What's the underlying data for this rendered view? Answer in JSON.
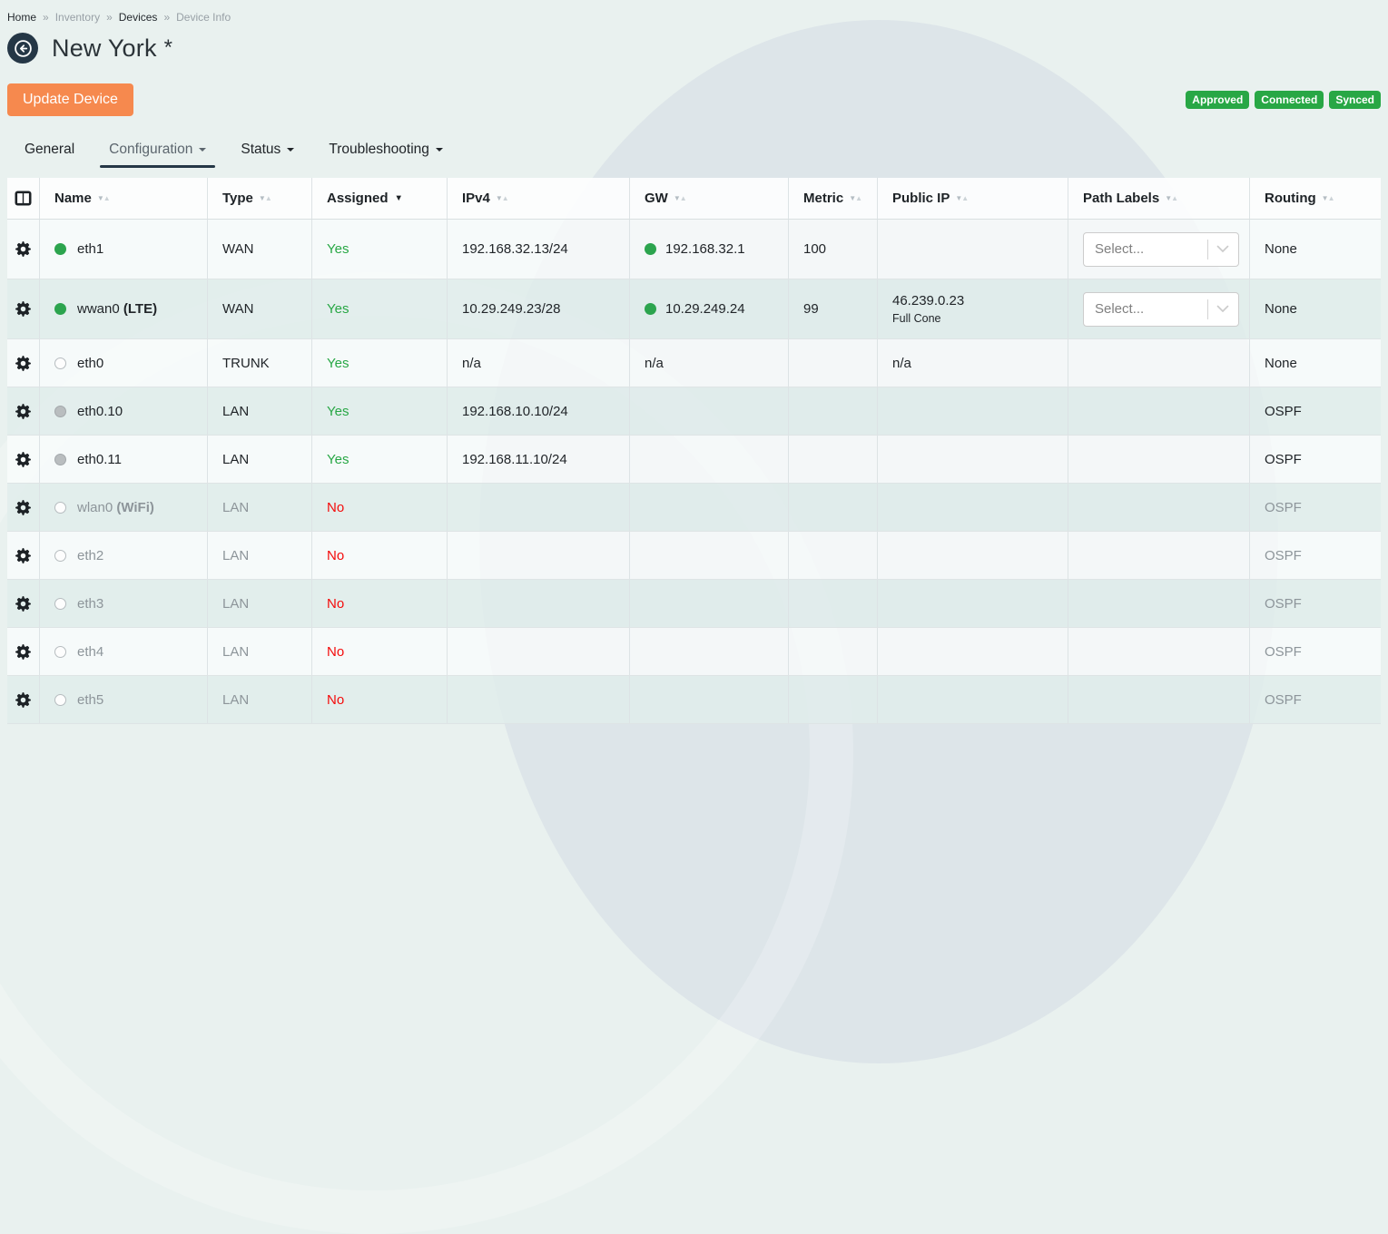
{
  "breadcrumb": {
    "separator": "»",
    "items": [
      {
        "label": "Home",
        "emphasis": true
      },
      {
        "label": "Inventory",
        "emphasis": false
      },
      {
        "label": "Devices",
        "emphasis": true
      },
      {
        "label": "Device Info",
        "emphasis": false
      }
    ]
  },
  "header": {
    "title": "New York",
    "unsaved_marker": "*",
    "back_icon": "arrow-left-circle-icon"
  },
  "actions": {
    "update_button": "Update Device"
  },
  "status_badges": [
    {
      "label": "Approved"
    },
    {
      "label": "Connected"
    },
    {
      "label": "Synced"
    }
  ],
  "tabs": {
    "items": [
      {
        "label": "General",
        "caret": false,
        "active": false
      },
      {
        "label": "Configuration",
        "caret": true,
        "active": true
      },
      {
        "label": "Status",
        "caret": true,
        "active": false
      },
      {
        "label": "Troubleshooting",
        "caret": true,
        "active": false
      }
    ]
  },
  "interfaces_table": {
    "columns_toggle_icon": "columns-icon",
    "row_settings_icon": "gear-icon",
    "select_placeholder": "Select...",
    "select_chevron_icon": "chevron-down-icon",
    "columns": [
      {
        "label": "Name",
        "sort": "default"
      },
      {
        "label": "Type",
        "sort": "default"
      },
      {
        "label": "Assigned",
        "sort": "desc"
      },
      {
        "label": "IPv4",
        "sort": "default"
      },
      {
        "label": "GW",
        "sort": "default"
      },
      {
        "label": "Metric",
        "sort": "default"
      },
      {
        "label": "Public IP",
        "sort": "default"
      },
      {
        "label": "Path Labels",
        "sort": "default"
      },
      {
        "label": "Routing",
        "sort": "default"
      }
    ],
    "rows": [
      {
        "dot": "green",
        "name": "eth1",
        "name_suffix": "",
        "type": "WAN",
        "assigned": "Yes",
        "ipv4": "192.168.32.13/24",
        "gw": "192.168.32.1",
        "gw_dot": true,
        "metric": "100",
        "public_ip": "",
        "public_ip_note": "",
        "path_label_select": true,
        "routing": "None",
        "muted": false
      },
      {
        "dot": "green",
        "name": "wwan0 ",
        "name_suffix": "(LTE)",
        "type": "WAN",
        "assigned": "Yes",
        "ipv4": "10.29.249.23/28",
        "gw": "10.29.249.24",
        "gw_dot": true,
        "metric": "99",
        "public_ip": "46.239.0.23",
        "public_ip_note": "Full Cone",
        "path_label_select": true,
        "routing": "None",
        "muted": false
      },
      {
        "dot": "empty",
        "name": "eth0",
        "name_suffix": "",
        "type": "TRUNK",
        "assigned": "Yes",
        "ipv4": "n/a",
        "gw": "n/a",
        "gw_dot": false,
        "metric": "",
        "public_ip": "n/a",
        "public_ip_note": "",
        "path_label_select": false,
        "routing": "None",
        "muted": false
      },
      {
        "dot": "gray",
        "name": "eth0.10",
        "name_suffix": "",
        "type": "LAN",
        "assigned": "Yes",
        "ipv4": "192.168.10.10/24",
        "gw": "",
        "gw_dot": false,
        "metric": "",
        "public_ip": "",
        "public_ip_note": "",
        "path_label_select": false,
        "routing": "OSPF",
        "muted": false
      },
      {
        "dot": "gray",
        "name": "eth0.11",
        "name_suffix": "",
        "type": "LAN",
        "assigned": "Yes",
        "ipv4": "192.168.11.10/24",
        "gw": "",
        "gw_dot": false,
        "metric": "",
        "public_ip": "",
        "public_ip_note": "",
        "path_label_select": false,
        "routing": "OSPF",
        "muted": false
      },
      {
        "dot": "empty",
        "name": "wlan0 ",
        "name_suffix": "(WiFi)",
        "type": "LAN",
        "assigned": "No",
        "ipv4": "",
        "gw": "",
        "gw_dot": false,
        "metric": "",
        "public_ip": "",
        "public_ip_note": "",
        "path_label_select": false,
        "routing": "OSPF",
        "muted": true
      },
      {
        "dot": "empty",
        "name": "eth2",
        "name_suffix": "",
        "type": "LAN",
        "assigned": "No",
        "ipv4": "",
        "gw": "",
        "gw_dot": false,
        "metric": "",
        "public_ip": "",
        "public_ip_note": "",
        "path_label_select": false,
        "routing": "OSPF",
        "muted": true
      },
      {
        "dot": "empty",
        "name": "eth3",
        "name_suffix": "",
        "type": "LAN",
        "assigned": "No",
        "ipv4": "",
        "gw": "",
        "gw_dot": false,
        "metric": "",
        "public_ip": "",
        "public_ip_note": "",
        "path_label_select": false,
        "routing": "OSPF",
        "muted": true
      },
      {
        "dot": "empty",
        "name": "eth4",
        "name_suffix": "",
        "type": "LAN",
        "assigned": "No",
        "ipv4": "",
        "gw": "",
        "gw_dot": false,
        "metric": "",
        "public_ip": "",
        "public_ip_note": "",
        "path_label_select": false,
        "routing": "OSPF",
        "muted": true
      },
      {
        "dot": "empty",
        "name": "eth5",
        "name_suffix": "",
        "type": "LAN",
        "assigned": "No",
        "ipv4": "",
        "gw": "",
        "gw_dot": false,
        "metric": "",
        "public_ip": "",
        "public_ip_note": "",
        "path_label_select": false,
        "routing": "OSPF",
        "muted": true
      }
    ]
  },
  "colors": {
    "page_bg": "#e9f1ef",
    "watermark": "#dde5e9",
    "navy": "#253746",
    "accent_orange": "#f6894e",
    "badge_green": "#28a745",
    "status_dot_green": "#2ca44e",
    "assigned_yes_green": "#28a745",
    "assigned_no_red": "#f40b0b"
  }
}
